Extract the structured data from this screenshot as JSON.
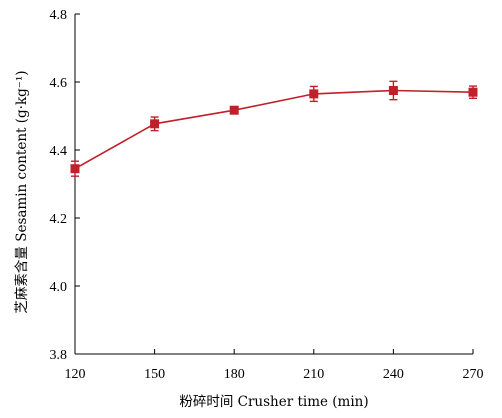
{
  "chart_data": {
    "type": "line",
    "title": "",
    "xlabel": "粉碎时间 Crusher time (min)",
    "ylabel": "芝麻素含量 Sesamin content (g·kg⁻¹)",
    "x": [
      120,
      150,
      180,
      210,
      240,
      270
    ],
    "xticks": [
      "120",
      "150",
      "180",
      "210",
      "240",
      "270"
    ],
    "yticks": [
      "3.8",
      "4.0",
      "4.2",
      "4.4",
      "4.6",
      "4.8"
    ],
    "xlim": [
      120,
      270
    ],
    "ylim": [
      3.8,
      4.8
    ],
    "grid": false,
    "legend": "none",
    "series": [
      {
        "values": [
          4.345,
          4.477,
          4.517,
          4.565,
          4.575,
          4.57
        ],
        "errors": [
          0.022,
          0.02,
          0.01,
          0.022,
          0.027,
          0.018
        ],
        "color": "#c0202a",
        "marker": "square"
      }
    ]
  }
}
